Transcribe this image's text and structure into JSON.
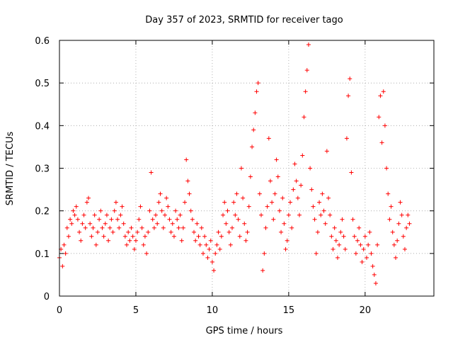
{
  "chart_data": {
    "type": "scatter",
    "title": "Day 357 of 2023, SRMTID for receiver tago",
    "xlabel": "GPS time / hours",
    "ylabel": "SRMTID / TECUs",
    "xlim": [
      0,
      24.5
    ],
    "ylim": [
      0,
      0.6
    ],
    "x_ticks": [
      0,
      5,
      10,
      15,
      20
    ],
    "y_ticks": [
      0,
      0.1,
      0.2,
      0.3,
      0.4,
      0.5,
      0.6
    ],
    "x_tick_labels": [
      "0",
      "5",
      "10",
      "15",
      "20"
    ],
    "y_tick_labels": [
      "0",
      "0.1",
      "0.2",
      "0.3",
      "0.4",
      "0.5",
      "0.6"
    ],
    "grid": true,
    "marker": "plus",
    "color": "#ff0000",
    "series": [
      {
        "name": "SRMTID",
        "points": [
          [
            0.0,
            0.09
          ],
          [
            0.1,
            0.11
          ],
          [
            0.2,
            0.07
          ],
          [
            0.3,
            0.12
          ],
          [
            0.4,
            0.1
          ],
          [
            0.5,
            0.16
          ],
          [
            0.6,
            0.14
          ],
          [
            0.7,
            0.18
          ],
          [
            0.8,
            0.17
          ],
          [
            0.9,
            0.2
          ],
          [
            1.0,
            0.19
          ],
          [
            1.1,
            0.21
          ],
          [
            1.2,
            0.18
          ],
          [
            1.3,
            0.15
          ],
          [
            1.4,
            0.13
          ],
          [
            1.5,
            0.17
          ],
          [
            1.6,
            0.19
          ],
          [
            1.7,
            0.16
          ],
          [
            1.8,
            0.22
          ],
          [
            1.9,
            0.23
          ],
          [
            2.0,
            0.17
          ],
          [
            2.1,
            0.14
          ],
          [
            2.2,
            0.16
          ],
          [
            2.3,
            0.19
          ],
          [
            2.4,
            0.12
          ],
          [
            2.5,
            0.15
          ],
          [
            2.6,
            0.18
          ],
          [
            2.7,
            0.2
          ],
          [
            2.8,
            0.16
          ],
          [
            2.9,
            0.14
          ],
          [
            3.0,
            0.17
          ],
          [
            3.1,
            0.19
          ],
          [
            3.2,
            0.13
          ],
          [
            3.3,
            0.16
          ],
          [
            3.4,
            0.18
          ],
          [
            3.5,
            0.15
          ],
          [
            3.6,
            0.2
          ],
          [
            3.7,
            0.22
          ],
          [
            3.8,
            0.18
          ],
          [
            3.9,
            0.16
          ],
          [
            4.0,
            0.19
          ],
          [
            4.1,
            0.21
          ],
          [
            4.2,
            0.17
          ],
          [
            4.3,
            0.14
          ],
          [
            4.4,
            0.12
          ],
          [
            4.5,
            0.15
          ],
          [
            4.6,
            0.13
          ],
          [
            4.7,
            0.16
          ],
          [
            4.8,
            0.14
          ],
          [
            4.9,
            0.11
          ],
          [
            5.0,
            0.13
          ],
          [
            5.1,
            0.15
          ],
          [
            5.2,
            0.18
          ],
          [
            5.3,
            0.21
          ],
          [
            5.4,
            0.16
          ],
          [
            5.5,
            0.12
          ],
          [
            5.6,
            0.14
          ],
          [
            5.7,
            0.1
          ],
          [
            5.8,
            0.15
          ],
          [
            5.9,
            0.2
          ],
          [
            6.0,
            0.29
          ],
          [
            6.1,
            0.18
          ],
          [
            6.2,
            0.16
          ],
          [
            6.3,
            0.19
          ],
          [
            6.4,
            0.17
          ],
          [
            6.5,
            0.22
          ],
          [
            6.6,
            0.24
          ],
          [
            6.7,
            0.2
          ],
          [
            6.8,
            0.16
          ],
          [
            6.9,
            0.19
          ],
          [
            7.0,
            0.23
          ],
          [
            7.1,
            0.21
          ],
          [
            7.2,
            0.18
          ],
          [
            7.3,
            0.15
          ],
          [
            7.4,
            0.17
          ],
          [
            7.5,
            0.14
          ],
          [
            7.6,
            0.2
          ],
          [
            7.7,
            0.18
          ],
          [
            7.8,
            0.16
          ],
          [
            7.9,
            0.19
          ],
          [
            8.0,
            0.13
          ],
          [
            8.1,
            0.16
          ],
          [
            8.2,
            0.22
          ],
          [
            8.3,
            0.32
          ],
          [
            8.4,
            0.27
          ],
          [
            8.5,
            0.24
          ],
          [
            8.6,
            0.2
          ],
          [
            8.7,
            0.18
          ],
          [
            8.8,
            0.15
          ],
          [
            8.9,
            0.13
          ],
          [
            9.0,
            0.17
          ],
          [
            9.1,
            0.14
          ],
          [
            9.2,
            0.12
          ],
          [
            9.3,
            0.16
          ],
          [
            9.4,
            0.1
          ],
          [
            9.5,
            0.14
          ],
          [
            9.6,
            0.12
          ],
          [
            9.7,
            0.09
          ],
          [
            9.8,
            0.11
          ],
          [
            9.9,
            0.13
          ],
          [
            10.0,
            0.08
          ],
          [
            10.1,
            0.06
          ],
          [
            10.2,
            0.1
          ],
          [
            10.3,
            0.12
          ],
          [
            10.4,
            0.15
          ],
          [
            10.5,
            0.11
          ],
          [
            10.6,
            0.14
          ],
          [
            10.7,
            0.19
          ],
          [
            10.8,
            0.22
          ],
          [
            10.9,
            0.17
          ],
          [
            11.0,
            0.2
          ],
          [
            11.1,
            0.15
          ],
          [
            11.2,
            0.12
          ],
          [
            11.3,
            0.16
          ],
          [
            11.4,
            0.22
          ],
          [
            11.5,
            0.19
          ],
          [
            11.6,
            0.24
          ],
          [
            11.7,
            0.18
          ],
          [
            11.8,
            0.14
          ],
          [
            11.9,
            0.3
          ],
          [
            12.0,
            0.23
          ],
          [
            12.1,
            0.17
          ],
          [
            12.2,
            0.13
          ],
          [
            12.3,
            0.15
          ],
          [
            12.4,
            0.21
          ],
          [
            12.5,
            0.28
          ],
          [
            12.6,
            0.35
          ],
          [
            12.7,
            0.39
          ],
          [
            12.8,
            0.43
          ],
          [
            12.9,
            0.48
          ],
          [
            13.0,
            0.5
          ],
          [
            13.1,
            0.24
          ],
          [
            13.2,
            0.19
          ],
          [
            13.3,
            0.06
          ],
          [
            13.4,
            0.1
          ],
          [
            13.5,
            0.16
          ],
          [
            13.6,
            0.21
          ],
          [
            13.7,
            0.37
          ],
          [
            13.8,
            0.27
          ],
          [
            13.9,
            0.22
          ],
          [
            14.0,
            0.18
          ],
          [
            14.1,
            0.24
          ],
          [
            14.2,
            0.32
          ],
          [
            14.3,
            0.28
          ],
          [
            14.4,
            0.2
          ],
          [
            14.5,
            0.15
          ],
          [
            14.6,
            0.23
          ],
          [
            14.7,
            0.17
          ],
          [
            14.8,
            0.11
          ],
          [
            14.9,
            0.13
          ],
          [
            15.0,
            0.19
          ],
          [
            15.1,
            0.22
          ],
          [
            15.2,
            0.16
          ],
          [
            15.3,
            0.25
          ],
          [
            15.4,
            0.31
          ],
          [
            15.5,
            0.27
          ],
          [
            15.6,
            0.23
          ],
          [
            15.7,
            0.19
          ],
          [
            15.8,
            0.26
          ],
          [
            15.9,
            0.33
          ],
          [
            16.0,
            0.42
          ],
          [
            16.1,
            0.48
          ],
          [
            16.2,
            0.53
          ],
          [
            16.3,
            0.59
          ],
          [
            16.4,
            0.3
          ],
          [
            16.5,
            0.25
          ],
          [
            16.6,
            0.21
          ],
          [
            16.7,
            0.18
          ],
          [
            16.8,
            0.1
          ],
          [
            16.9,
            0.15
          ],
          [
            17.0,
            0.22
          ],
          [
            17.1,
            0.19
          ],
          [
            17.2,
            0.24
          ],
          [
            17.3,
            0.2
          ],
          [
            17.4,
            0.17
          ],
          [
            17.5,
            0.34
          ],
          [
            17.6,
            0.23
          ],
          [
            17.7,
            0.19
          ],
          [
            17.8,
            0.14
          ],
          [
            17.9,
            0.11
          ],
          [
            18.0,
            0.16
          ],
          [
            18.1,
            0.13
          ],
          [
            18.2,
            0.09
          ],
          [
            18.3,
            0.12
          ],
          [
            18.4,
            0.15
          ],
          [
            18.5,
            0.18
          ],
          [
            18.6,
            0.14
          ],
          [
            18.7,
            0.11
          ],
          [
            18.8,
            0.37
          ],
          [
            18.9,
            0.47
          ],
          [
            19.0,
            0.51
          ],
          [
            19.1,
            0.29
          ],
          [
            19.2,
            0.18
          ],
          [
            19.3,
            0.14
          ],
          [
            19.4,
            0.1
          ],
          [
            19.5,
            0.13
          ],
          [
            19.6,
            0.16
          ],
          [
            19.7,
            0.12
          ],
          [
            19.8,
            0.08
          ],
          [
            19.9,
            0.11
          ],
          [
            20.0,
            0.14
          ],
          [
            20.1,
            0.09
          ],
          [
            20.2,
            0.12
          ],
          [
            20.3,
            0.15
          ],
          [
            20.4,
            0.1
          ],
          [
            20.5,
            0.07
          ],
          [
            20.6,
            0.05
          ],
          [
            20.7,
            0.03
          ],
          [
            20.8,
            0.12
          ],
          [
            20.9,
            0.42
          ],
          [
            21.0,
            0.47
          ],
          [
            21.1,
            0.36
          ],
          [
            21.2,
            0.48
          ],
          [
            21.3,
            0.4
          ],
          [
            21.4,
            0.3
          ],
          [
            21.5,
            0.24
          ],
          [
            21.6,
            0.18
          ],
          [
            21.7,
            0.21
          ],
          [
            21.8,
            0.15
          ],
          [
            21.9,
            0.12
          ],
          [
            22.0,
            0.09
          ],
          [
            22.1,
            0.13
          ],
          [
            22.2,
            0.17
          ],
          [
            22.3,
            0.22
          ],
          [
            22.4,
            0.19
          ],
          [
            22.5,
            0.14
          ],
          [
            22.6,
            0.11
          ],
          [
            22.7,
            0.16
          ],
          [
            22.8,
            0.19
          ],
          [
            22.9,
            0.17
          ]
        ]
      }
    ]
  }
}
